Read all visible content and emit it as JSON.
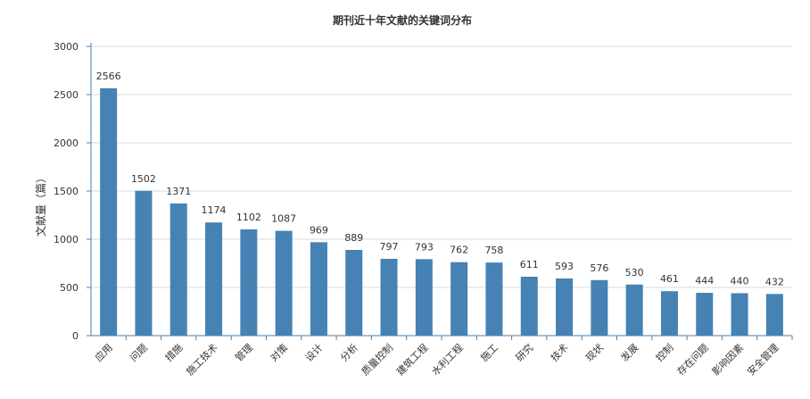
{
  "chart_data": {
    "type": "bar",
    "title": "期刊近十年文献的关键词分布",
    "xlabel": "",
    "ylabel": "文献量（篇）",
    "ylim": [
      0,
      3000
    ],
    "yticks": [
      0,
      500,
      1000,
      1500,
      2000,
      2500,
      3000
    ],
    "grid": true,
    "bar_color": "#4682b4",
    "categories": [
      "应用",
      "问题",
      "措施",
      "施工技术",
      "管理",
      "对策",
      "设计",
      "分析",
      "质量控制",
      "建筑工程",
      "水利工程",
      "施工",
      "研究",
      "技术",
      "现状",
      "发展",
      "控制",
      "存在问题",
      "影响因素",
      "安全管理"
    ],
    "values": [
      2566,
      1502,
      1371,
      1174,
      1102,
      1087,
      969,
      889,
      797,
      793,
      762,
      758,
      611,
      593,
      576,
      530,
      461,
      444,
      440,
      432
    ]
  }
}
